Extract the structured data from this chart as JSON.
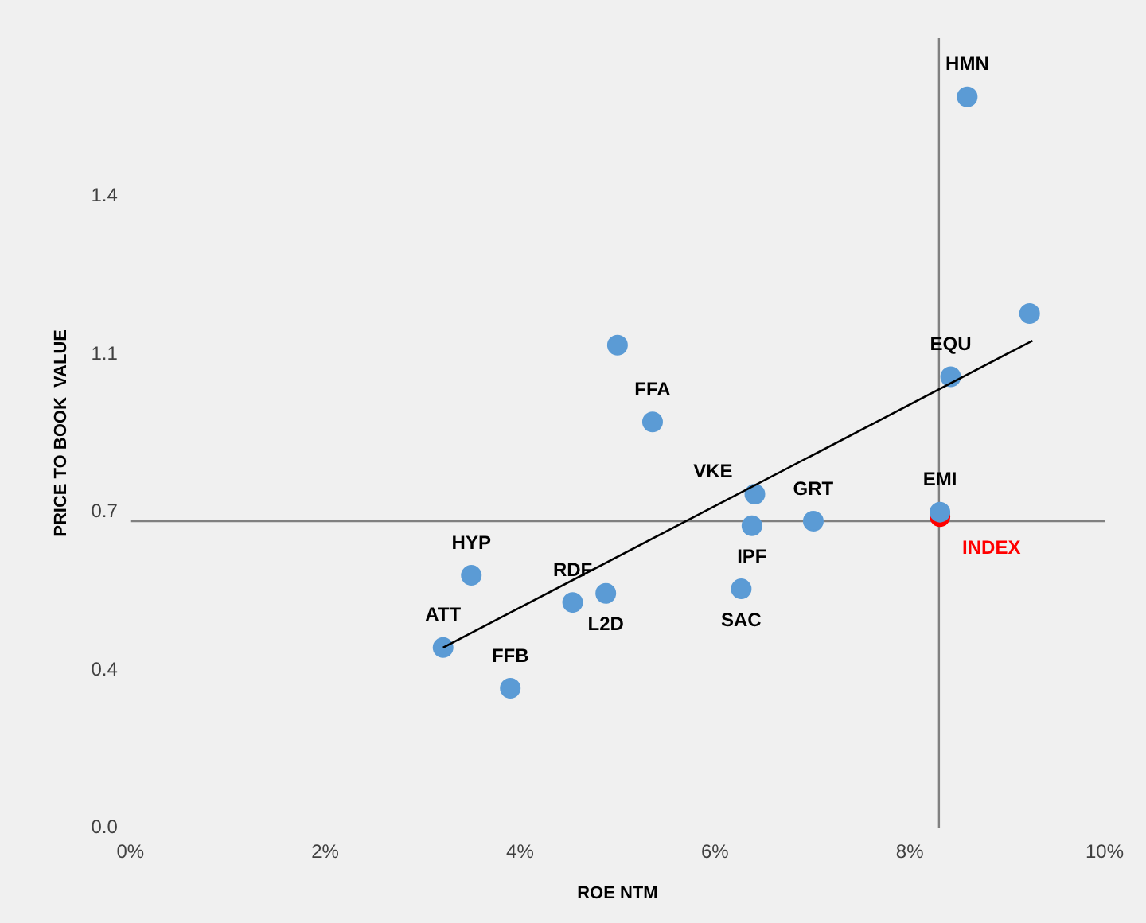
{
  "chart_data": {
    "type": "scatter",
    "xlabel": "ROE NTM",
    "ylabel": "PRICE TO BOOK  VALUE",
    "xlim": [
      0,
      10
    ],
    "xticks": [
      {
        "value": 0,
        "label": "0%"
      },
      {
        "value": 2,
        "label": "2%"
      },
      {
        "value": 4,
        "label": "4%"
      },
      {
        "value": 6,
        "label": "6%"
      },
      {
        "value": 8,
        "label": "8%"
      },
      {
        "value": 10,
        "label": "10%"
      }
    ],
    "ylim": [
      0,
      1.75
    ],
    "yticks": [
      {
        "value": 0,
        "label": "0.0"
      },
      {
        "value": 0.35,
        "label": "0.4"
      },
      {
        "value": 0.7,
        "label": "0.7"
      },
      {
        "value": 1.05,
        "label": "1.1"
      },
      {
        "value": 1.4,
        "label": "1.4"
      }
    ],
    "grid": false,
    "legend": false,
    "marker": "circle",
    "series": [
      {
        "color": "#5b9bd5",
        "x": [
          8.59,
          9.23,
          5.0,
          5.36,
          8.42,
          6.41,
          7.01,
          6.38,
          8.31,
          3.5,
          4.88,
          4.54,
          6.27,
          3.21,
          3.9
        ],
        "values": [
          1.62,
          1.14,
          1.07,
          0.9,
          1.0,
          0.74,
          0.68,
          0.67,
          0.7,
          0.56,
          0.52,
          0.5,
          0.53,
          0.4,
          0.31
        ]
      },
      {
        "name": "INDEX",
        "color": "#ff0000",
        "x": [
          8.31
        ],
        "values": [
          0.69
        ]
      },
      {
        "type": "line",
        "color": "#000000",
        "marker": "none",
        "x": [
          3.21,
          9.26
        ],
        "values": [
          0.4,
          1.08
        ]
      }
    ],
    "ref_lines": [
      {
        "axis": "x",
        "value": 8.3,
        "color": "#808080"
      },
      {
        "axis": "y",
        "value": 0.68,
        "color": "#808080"
      }
    ],
    "annotations": [
      {
        "text": "HMN",
        "x": 8.59,
        "y": 1.62
      },
      {
        "text": "FFA",
        "x": 5.36,
        "y": 0.9
      },
      {
        "text": "EQU",
        "x": 8.42,
        "y": 1.0
      },
      {
        "text": "VKE",
        "x": 6.41,
        "y": 0.74
      },
      {
        "text": "EMI",
        "x": 8.31,
        "y": 0.7
      },
      {
        "text": "GRT",
        "x": 7.01,
        "y": 0.68
      },
      {
        "text": "IPF",
        "x": 6.38,
        "y": 0.67
      },
      {
        "text": "HYP",
        "x": 3.5,
        "y": 0.56
      },
      {
        "text": "L2D",
        "x": 4.88,
        "y": 0.52
      },
      {
        "text": "RDF",
        "x": 4.54,
        "y": 0.5
      },
      {
        "text": "SAC",
        "x": 6.27,
        "y": 0.53
      },
      {
        "text": "ATT",
        "x": 3.21,
        "y": 0.4
      },
      {
        "text": "FFB",
        "x": 3.9,
        "y": 0.31
      }
    ]
  }
}
